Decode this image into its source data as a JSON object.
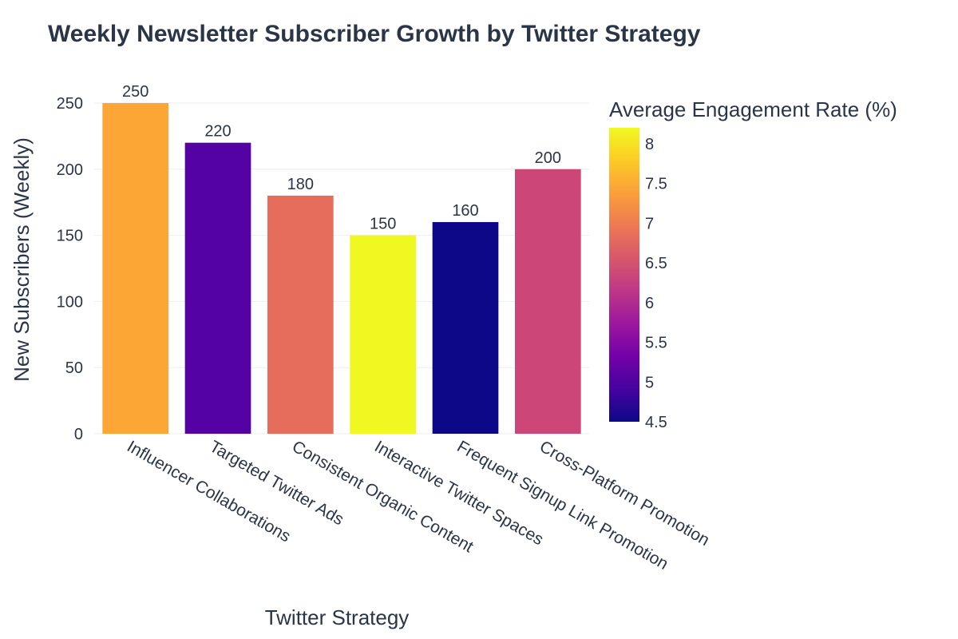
{
  "chart_data": {
    "type": "bar",
    "title": "Weekly Newsletter Subscriber Growth by Twitter Strategy",
    "xlabel": "Twitter Strategy",
    "ylabel": "New Subscribers (Weekly)",
    "categories": [
      "Influencer Collaborations",
      "Targeted Twitter Ads",
      "Consistent Organic Content",
      "Interactive Twitter Spaces",
      "Frequent Signup Link Promotion",
      "Cross-Platform Promotion"
    ],
    "values": [
      250,
      220,
      180,
      150,
      160,
      200
    ],
    "data_labels": [
      "250",
      "220",
      "180",
      "150",
      "160",
      "200"
    ],
    "engagement_rate": [
      7.6,
      4.9,
      6.8,
      8.2,
      4.5,
      6.3
    ],
    "ylim": [
      0,
      250
    ],
    "yticks": [
      0,
      50,
      100,
      150,
      200,
      250
    ],
    "grid": true,
    "colorbar": {
      "title": "Average Engagement Rate (%)",
      "range": [
        4.5,
        8.2
      ],
      "ticks": [
        "4.5",
        "5",
        "5.5",
        "6",
        "6.5",
        "7",
        "7.5",
        "8"
      ],
      "colorscale": "plasma"
    },
    "bar_colors": [
      "#fca636",
      "#5402a3",
      "#e66c5c",
      "#eff821",
      "#0d0887",
      "#cc4778"
    ]
  }
}
